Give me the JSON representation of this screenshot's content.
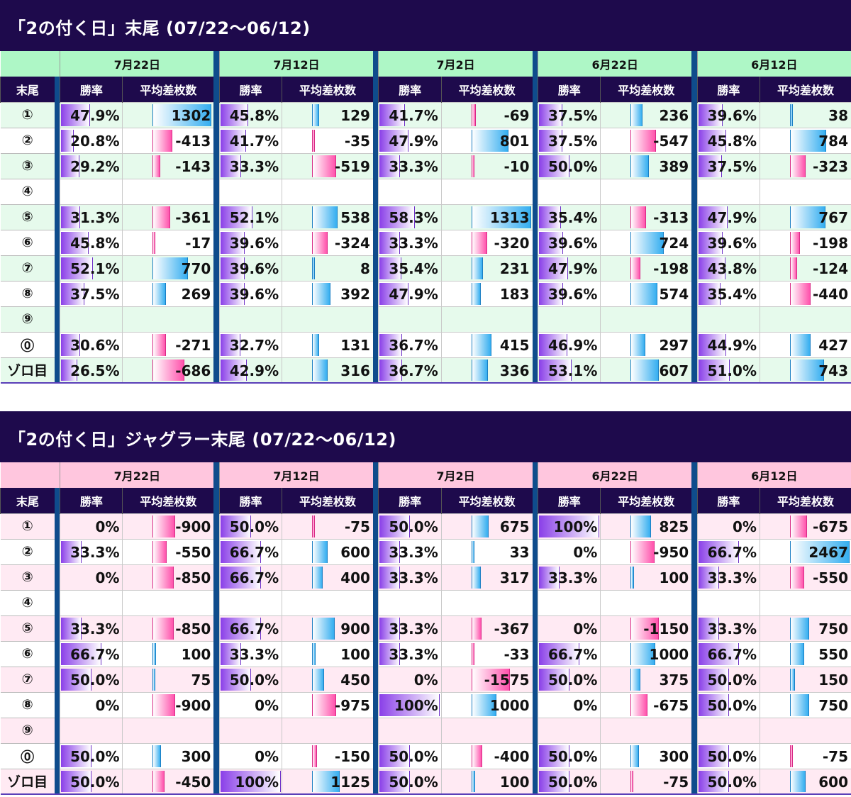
{
  "colors": {
    "tbl1_row_tint": "#e6faec",
    "tbl1_header": "#aef7c6",
    "tbl2_row_tint": "#ffeaf3",
    "tbl2_header": "#ffc6de",
    "title_bg": "#1e0a4c",
    "separator": "#0f4c8c"
  },
  "tables": [
    {
      "title": "「2の付く日」末尾 (07/22〜06/12)",
      "header_bg": "#aef7c6",
      "tint": "#e6faec",
      "scale_max": 1313,
      "col_label": "末尾",
      "sub_rate": "勝率",
      "sub_diff": "平均差枚数",
      "dates": [
        "7月22日",
        "7月12日",
        "7月2日",
        "6月22日",
        "6月12日"
      ],
      "rows": [
        {
          "label": "①",
          "cells": [
            {
              "rate": "47.9%",
              "diff": 1302
            },
            {
              "rate": "45.8%",
              "diff": 129
            },
            {
              "rate": "41.7%",
              "diff": -69
            },
            {
              "rate": "37.5%",
              "diff": 236
            },
            {
              "rate": "39.6%",
              "diff": 38
            }
          ]
        },
        {
          "label": "②",
          "cells": [
            {
              "rate": "20.8%",
              "diff": -413
            },
            {
              "rate": "41.7%",
              "diff": -35
            },
            {
              "rate": "47.9%",
              "diff": 801
            },
            {
              "rate": "37.5%",
              "diff": -547
            },
            {
              "rate": "45.8%",
              "diff": 784
            }
          ]
        },
        {
          "label": "③",
          "cells": [
            {
              "rate": "29.2%",
              "diff": -143
            },
            {
              "rate": "33.3%",
              "diff": -519
            },
            {
              "rate": "33.3%",
              "diff": -10
            },
            {
              "rate": "50.0%",
              "diff": 389
            },
            {
              "rate": "37.5%",
              "diff": -323
            }
          ]
        },
        {
          "label": "④",
          "cells": [
            {
              "rate": "",
              "diff": null
            },
            {
              "rate": "",
              "diff": null
            },
            {
              "rate": "",
              "diff": null
            },
            {
              "rate": "",
              "diff": null
            },
            {
              "rate": "",
              "diff": null
            }
          ]
        },
        {
          "label": "⑤",
          "cells": [
            {
              "rate": "31.3%",
              "diff": -361
            },
            {
              "rate": "52.1%",
              "diff": 538
            },
            {
              "rate": "58.3%",
              "diff": 1313
            },
            {
              "rate": "35.4%",
              "diff": -313
            },
            {
              "rate": "47.9%",
              "diff": 767
            }
          ]
        },
        {
          "label": "⑥",
          "cells": [
            {
              "rate": "45.8%",
              "diff": -17
            },
            {
              "rate": "39.6%",
              "diff": -324
            },
            {
              "rate": "33.3%",
              "diff": -320
            },
            {
              "rate": "39.6%",
              "diff": 724
            },
            {
              "rate": "39.6%",
              "diff": -198
            }
          ]
        },
        {
          "label": "⑦",
          "cells": [
            {
              "rate": "52.1%",
              "diff": 770
            },
            {
              "rate": "39.6%",
              "diff": 8
            },
            {
              "rate": "35.4%",
              "diff": 231
            },
            {
              "rate": "47.9%",
              "diff": -198
            },
            {
              "rate": "43.8%",
              "diff": -124
            }
          ]
        },
        {
          "label": "⑧",
          "cells": [
            {
              "rate": "37.5%",
              "diff": 269
            },
            {
              "rate": "39.6%",
              "diff": 392
            },
            {
              "rate": "47.9%",
              "diff": 183
            },
            {
              "rate": "39.6%",
              "diff": 574
            },
            {
              "rate": "35.4%",
              "diff": -440
            }
          ]
        },
        {
          "label": "⑨",
          "cells": [
            {
              "rate": "",
              "diff": null
            },
            {
              "rate": "",
              "diff": null
            },
            {
              "rate": "",
              "diff": null
            },
            {
              "rate": "",
              "diff": null
            },
            {
              "rate": "",
              "diff": null
            }
          ]
        },
        {
          "label": "⓪",
          "cells": [
            {
              "rate": "30.6%",
              "diff": -271
            },
            {
              "rate": "32.7%",
              "diff": 131
            },
            {
              "rate": "36.7%",
              "diff": 415
            },
            {
              "rate": "46.9%",
              "diff": 297
            },
            {
              "rate": "44.9%",
              "diff": 427
            }
          ]
        },
        {
          "label": "ゾロ目",
          "cells": [
            {
              "rate": "26.5%",
              "diff": -686
            },
            {
              "rate": "42.9%",
              "diff": 316
            },
            {
              "rate": "36.7%",
              "diff": 336
            },
            {
              "rate": "53.1%",
              "diff": 607
            },
            {
              "rate": "51.0%",
              "diff": 743
            }
          ]
        }
      ]
    },
    {
      "title": "「2の付く日」ジャグラー末尾 (07/22〜06/12)",
      "header_bg": "#ffc6de",
      "tint": "#ffeaf3",
      "scale_max": 2467,
      "col_label": "末尾",
      "sub_rate": "勝率",
      "sub_diff": "平均差枚数",
      "dates": [
        "7月22日",
        "7月12日",
        "7月2日",
        "6月22日",
        "6月12日"
      ],
      "rows": [
        {
          "label": "①",
          "cells": [
            {
              "rate": "0%",
              "diff": -900
            },
            {
              "rate": "50.0%",
              "diff": -75
            },
            {
              "rate": "50.0%",
              "diff": 675
            },
            {
              "rate": "100%",
              "diff": 825
            },
            {
              "rate": "0%",
              "diff": -675
            }
          ]
        },
        {
          "label": "②",
          "cells": [
            {
              "rate": "33.3%",
              "diff": -550
            },
            {
              "rate": "66.7%",
              "diff": 600
            },
            {
              "rate": "33.3%",
              "diff": 33
            },
            {
              "rate": "0%",
              "diff": -950
            },
            {
              "rate": "66.7%",
              "diff": 2467
            }
          ]
        },
        {
          "label": "③",
          "cells": [
            {
              "rate": "0%",
              "diff": -850
            },
            {
              "rate": "66.7%",
              "diff": 400
            },
            {
              "rate": "33.3%",
              "diff": 317
            },
            {
              "rate": "33.3%",
              "diff": 100
            },
            {
              "rate": "33.3%",
              "diff": -550
            }
          ]
        },
        {
          "label": "④",
          "cells": [
            {
              "rate": "",
              "diff": null
            },
            {
              "rate": "",
              "diff": null
            },
            {
              "rate": "",
              "diff": null
            },
            {
              "rate": "",
              "diff": null
            },
            {
              "rate": "",
              "diff": null
            }
          ]
        },
        {
          "label": "⑤",
          "cells": [
            {
              "rate": "33.3%",
              "diff": -850
            },
            {
              "rate": "66.7%",
              "diff": 900
            },
            {
              "rate": "33.3%",
              "diff": -367
            },
            {
              "rate": "0%",
              "diff": -1150
            },
            {
              "rate": "33.3%",
              "diff": 750
            }
          ]
        },
        {
          "label": "⑥",
          "cells": [
            {
              "rate": "66.7%",
              "diff": 100
            },
            {
              "rate": "33.3%",
              "diff": 100
            },
            {
              "rate": "33.3%",
              "diff": -33
            },
            {
              "rate": "66.7%",
              "diff": 1000
            },
            {
              "rate": "66.7%",
              "diff": 550
            }
          ]
        },
        {
          "label": "⑦",
          "cells": [
            {
              "rate": "50.0%",
              "diff": 75
            },
            {
              "rate": "50.0%",
              "diff": 450
            },
            {
              "rate": "0%",
              "diff": -1575
            },
            {
              "rate": "50.0%",
              "diff": 375
            },
            {
              "rate": "50.0%",
              "diff": 150
            }
          ]
        },
        {
          "label": "⑧",
          "cells": [
            {
              "rate": "0%",
              "diff": -900
            },
            {
              "rate": "0%",
              "diff": -975
            },
            {
              "rate": "100%",
              "diff": 1000
            },
            {
              "rate": "0%",
              "diff": -675
            },
            {
              "rate": "50.0%",
              "diff": 750
            }
          ]
        },
        {
          "label": "⑨",
          "cells": [
            {
              "rate": "",
              "diff": null
            },
            {
              "rate": "",
              "diff": null
            },
            {
              "rate": "",
              "diff": null
            },
            {
              "rate": "",
              "diff": null
            },
            {
              "rate": "",
              "diff": null
            }
          ]
        },
        {
          "label": "⓪",
          "cells": [
            {
              "rate": "50.0%",
              "diff": 300
            },
            {
              "rate": "0%",
              "diff": -150
            },
            {
              "rate": "50.0%",
              "diff": -400
            },
            {
              "rate": "50.0%",
              "diff": 300
            },
            {
              "rate": "50.0%",
              "diff": -75
            }
          ]
        },
        {
          "label": "ゾロ目",
          "cells": [
            {
              "rate": "50.0%",
              "diff": -450
            },
            {
              "rate": "100%",
              "diff": 1125
            },
            {
              "rate": "50.0%",
              "diff": 100
            },
            {
              "rate": "50.0%",
              "diff": -75
            },
            {
              "rate": "50.0%",
              "diff": 600
            }
          ]
        }
      ]
    }
  ]
}
